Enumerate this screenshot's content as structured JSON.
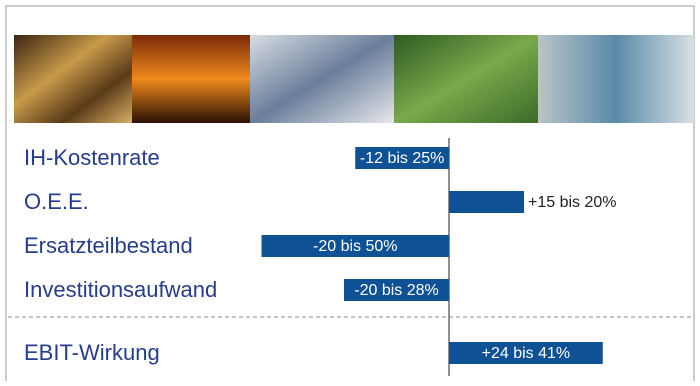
{
  "chart_data": {
    "type": "bar",
    "categories": [
      "IH-Kostenrate",
      "O.E.E.",
      "Ersatzteilbestand",
      "Investitionsaufwand",
      "EBIT-Wirkung"
    ],
    "values": [
      -25,
      20,
      -50,
      -28,
      41
    ],
    "value_labels": [
      "-12 bis 25%",
      "+15 bis 20%",
      "-20 bis 50%",
      "-20 bis 28%",
      "+24 bis 41%"
    ],
    "color": "#0e5195"
  }
}
